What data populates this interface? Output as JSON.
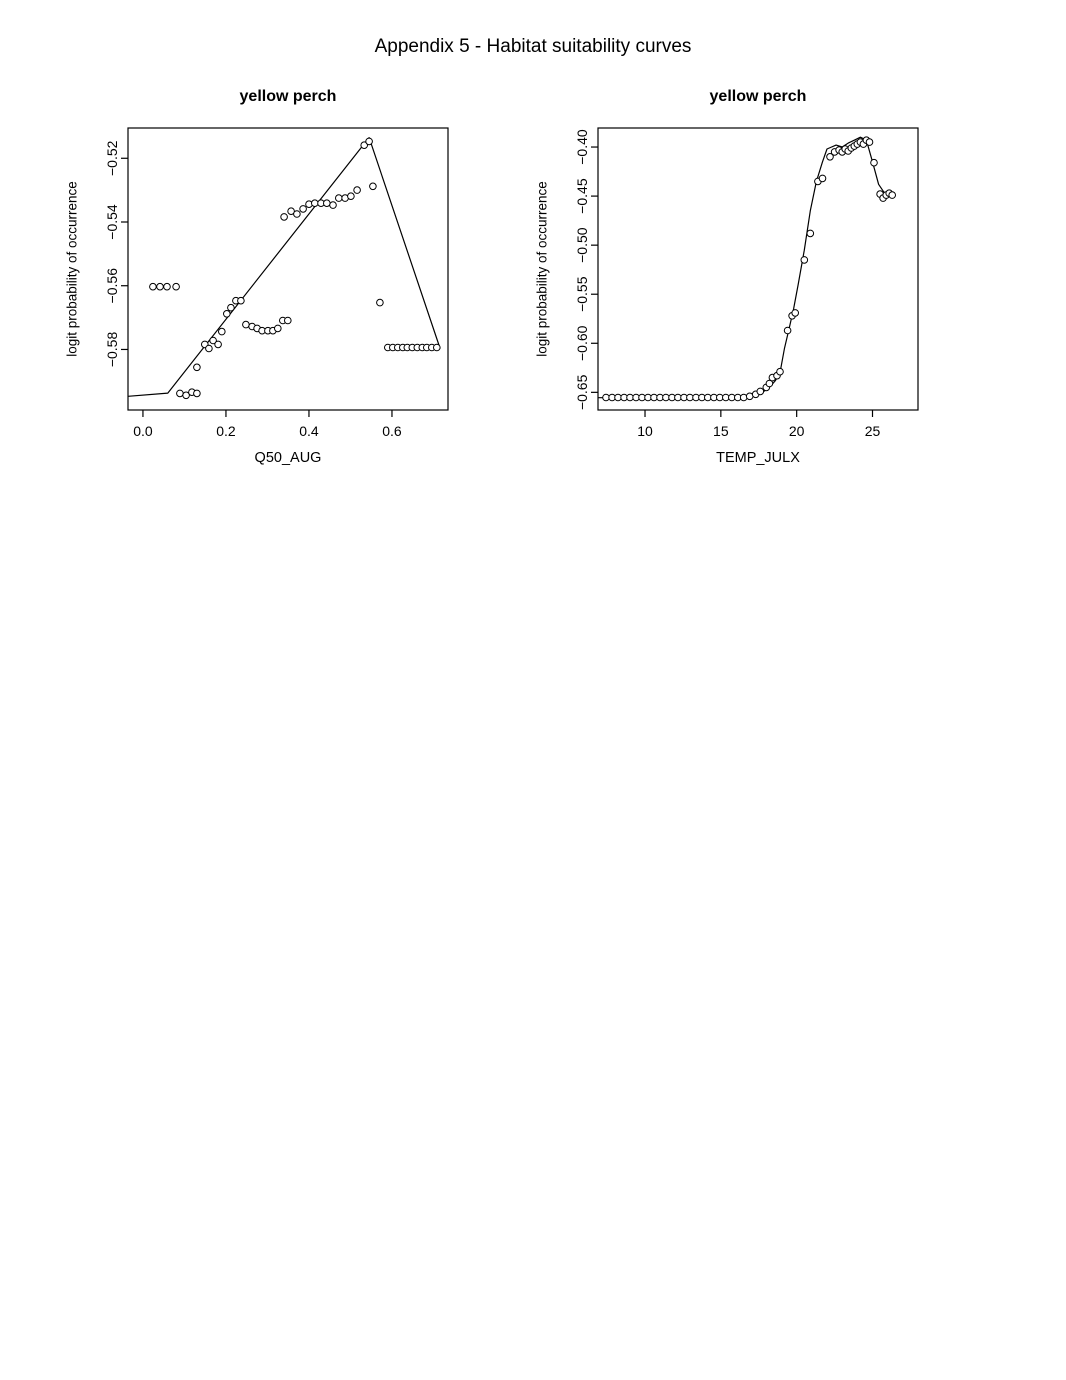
{
  "page": {
    "title": "Appendix 5 - Habitat suitability curves"
  },
  "colors": {
    "foreground": "#000000",
    "background": "#ffffff",
    "marker_fill": "#ffffff"
  },
  "chart_data": [
    {
      "type": "scatter",
      "title": "yellow perch",
      "xlabel": "Q50_AUG",
      "ylabel": "logit probability of occurrence",
      "marker": "open-circle",
      "grid": false,
      "xlim": [
        -0.036,
        0.735
      ],
      "ylim": [
        -0.599,
        -0.5105
      ],
      "xticks": [
        0.0,
        0.2,
        0.4,
        0.6
      ],
      "xtick_labels": [
        "0.0",
        "0.2",
        "0.4",
        "0.6"
      ],
      "yticks": [
        -0.52,
        -0.54,
        -0.56,
        -0.58
      ],
      "ytick_labels": [
        "−0.52",
        "−0.54",
        "−0.56",
        "−0.58"
      ],
      "points": [
        [
          0.024,
          -0.5603
        ],
        [
          0.041,
          -0.5603
        ],
        [
          0.058,
          -0.5603
        ],
        [
          0.08,
          -0.5603
        ],
        [
          0.089,
          -0.5938
        ],
        [
          0.104,
          -0.5944
        ],
        [
          0.118,
          -0.5934
        ],
        [
          0.13,
          -0.5938
        ],
        [
          0.13,
          -0.5856
        ],
        [
          0.149,
          -0.5784
        ],
        [
          0.159,
          -0.5797
        ],
        [
          0.169,
          -0.5772
        ],
        [
          0.181,
          -0.5784
        ],
        [
          0.19,
          -0.5744
        ],
        [
          0.202,
          -0.5688
        ],
        [
          0.212,
          -0.5669
        ],
        [
          0.224,
          -0.5647
        ],
        [
          0.236,
          -0.5647
        ],
        [
          0.248,
          -0.5722
        ],
        [
          0.263,
          -0.5728
        ],
        [
          0.275,
          -0.5734
        ],
        [
          0.287,
          -0.5741
        ],
        [
          0.301,
          -0.5741
        ],
        [
          0.313,
          -0.5741
        ],
        [
          0.325,
          -0.5734
        ],
        [
          0.337,
          -0.5709
        ],
        [
          0.349,
          -0.5709
        ],
        [
          0.34,
          -0.5384
        ],
        [
          0.357,
          -0.5366
        ],
        [
          0.371,
          -0.5375
        ],
        [
          0.386,
          -0.5359
        ],
        [
          0.4,
          -0.5344
        ],
        [
          0.414,
          -0.5341
        ],
        [
          0.429,
          -0.5341
        ],
        [
          0.443,
          -0.5341
        ],
        [
          0.458,
          -0.5347
        ],
        [
          0.472,
          -0.5325
        ],
        [
          0.487,
          -0.5325
        ],
        [
          0.501,
          -0.5319
        ],
        [
          0.516,
          -0.53
        ],
        [
          0.533,
          -0.5159
        ],
        [
          0.545,
          -0.5147
        ],
        [
          0.554,
          -0.5288
        ],
        [
          0.571,
          -0.5653
        ],
        [
          0.59,
          -0.5794
        ],
        [
          0.602,
          -0.5794
        ],
        [
          0.614,
          -0.5794
        ],
        [
          0.626,
          -0.5794
        ],
        [
          0.637,
          -0.5794
        ],
        [
          0.649,
          -0.5794
        ],
        [
          0.661,
          -0.5794
        ],
        [
          0.673,
          -0.5794
        ],
        [
          0.684,
          -0.5794
        ],
        [
          0.696,
          -0.5794
        ],
        [
          0.708,
          -0.5794
        ]
      ],
      "line": [
        [
          -0.036,
          -0.5947
        ],
        [
          0.06,
          -0.5937
        ],
        [
          0.545,
          -0.5135
        ],
        [
          0.716,
          -0.5797
        ]
      ]
    },
    {
      "type": "scatter",
      "title": "yellow perch",
      "xlabel": "TEMP_JULX",
      "ylabel": "logit probability of occurrence",
      "marker": "open-circle",
      "grid": false,
      "xlim": [
        6.9,
        28.0
      ],
      "ylim": [
        -0.668,
        -0.3806
      ],
      "xticks": [
        10,
        15,
        20,
        25
      ],
      "xtick_labels": [
        "10",
        "15",
        "20",
        "25"
      ],
      "yticks": [
        -0.4,
        -0.45,
        -0.5,
        -0.55,
        -0.6,
        -0.65
      ],
      "ytick_labels": [
        "−0.40",
        "−0.45",
        "−0.50",
        "−0.55",
        "−0.60",
        "−0.65"
      ],
      "points": [
        [
          7.43,
          -0.6553
        ],
        [
          7.83,
          -0.6553
        ],
        [
          8.22,
          -0.6553
        ],
        [
          8.62,
          -0.6553
        ],
        [
          9.01,
          -0.6553
        ],
        [
          9.41,
          -0.6553
        ],
        [
          9.8,
          -0.6553
        ],
        [
          10.2,
          -0.6553
        ],
        [
          10.59,
          -0.6553
        ],
        [
          10.99,
          -0.6553
        ],
        [
          11.38,
          -0.6553
        ],
        [
          11.78,
          -0.6553
        ],
        [
          12.17,
          -0.6553
        ],
        [
          12.57,
          -0.6553
        ],
        [
          12.96,
          -0.6553
        ],
        [
          13.36,
          -0.6553
        ],
        [
          13.75,
          -0.6553
        ],
        [
          14.14,
          -0.6553
        ],
        [
          14.54,
          -0.6553
        ],
        [
          14.93,
          -0.6553
        ],
        [
          15.33,
          -0.6553
        ],
        [
          15.72,
          -0.6553
        ],
        [
          16.12,
          -0.6553
        ],
        [
          16.51,
          -0.6553
        ],
        [
          16.9,
          -0.654
        ],
        [
          17.3,
          -0.652
        ],
        [
          17.6,
          -0.649
        ],
        [
          18.0,
          -0.645
        ],
        [
          18.2,
          -0.641
        ],
        [
          18.4,
          -0.635
        ],
        [
          18.7,
          -0.633
        ],
        [
          18.9,
          -0.629
        ],
        [
          19.4,
          -0.587
        ],
        [
          19.7,
          -0.572
        ],
        [
          19.9,
          -0.569
        ],
        [
          20.5,
          -0.515
        ],
        [
          20.9,
          -0.488
        ],
        [
          21.4,
          -0.435
        ],
        [
          21.7,
          -0.432
        ],
        [
          22.2,
          -0.41
        ],
        [
          22.5,
          -0.405
        ],
        [
          22.8,
          -0.403
        ],
        [
          23.0,
          -0.405
        ],
        [
          23.2,
          -0.402
        ],
        [
          23.4,
          -0.404
        ],
        [
          23.6,
          -0.401
        ],
        [
          23.8,
          -0.399
        ],
        [
          24.0,
          -0.397
        ],
        [
          24.2,
          -0.395
        ],
        [
          24.4,
          -0.397
        ],
        [
          24.6,
          -0.393
        ],
        [
          24.8,
          -0.395
        ],
        [
          25.1,
          -0.416
        ],
        [
          25.5,
          -0.448
        ],
        [
          25.7,
          -0.452
        ],
        [
          25.9,
          -0.449
        ],
        [
          26.1,
          -0.447
        ],
        [
          26.3,
          -0.449
        ]
      ],
      "line": [
        [
          6.9,
          -0.6555
        ],
        [
          15.0,
          -0.655
        ],
        [
          16.5,
          -0.6545
        ],
        [
          17.3,
          -0.6525
        ],
        [
          17.8,
          -0.6495
        ],
        [
          18.2,
          -0.645
        ],
        [
          18.6,
          -0.638
        ],
        [
          18.9,
          -0.63
        ],
        [
          19.2,
          -0.605
        ],
        [
          19.5,
          -0.585
        ],
        [
          19.8,
          -0.565
        ],
        [
          20.1,
          -0.54
        ],
        [
          20.5,
          -0.505
        ],
        [
          20.9,
          -0.465
        ],
        [
          21.3,
          -0.435
        ],
        [
          21.7,
          -0.415
        ],
        [
          22.0,
          -0.402
        ],
        [
          22.3,
          -0.4
        ],
        [
          22.6,
          -0.398
        ],
        [
          23.0,
          -0.4
        ],
        [
          23.4,
          -0.396
        ],
        [
          23.8,
          -0.393
        ],
        [
          24.2,
          -0.39
        ],
        [
          24.6,
          -0.393
        ],
        [
          25.0,
          -0.415
        ],
        [
          25.4,
          -0.438
        ],
        [
          25.8,
          -0.447
        ],
        [
          26.3,
          -0.448
        ]
      ]
    }
  ]
}
